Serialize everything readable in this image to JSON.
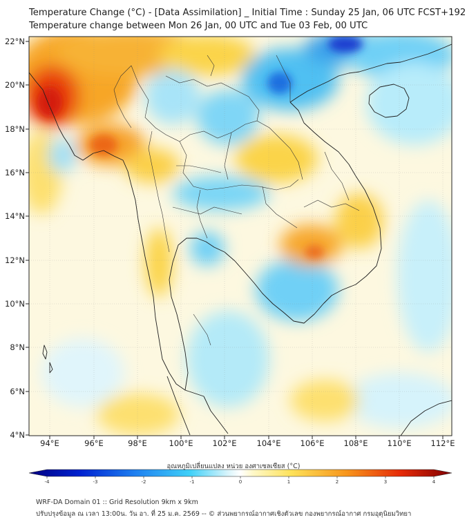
{
  "title_line1": "Temperature Change (°C) - [Data Assimilation] _ Initial Time : Sunday 25 Jan, 06 UTC FCST+192",
  "title_line2": "Temperature change between Mon 26 Jan, 00 UTC and Tue 03 Feb, 00 UTC",
  "lon_labels": [
    "94°E",
    "96°E",
    "98°E",
    "100°E",
    "102°E",
    "104°E",
    "106°E",
    "108°E",
    "110°E",
    "112°E"
  ],
  "lat_labels": [
    "22°N",
    "20°N",
    "18°N",
    "16°N",
    "14°N",
    "12°N",
    "10°N",
    "8°N",
    "6°N",
    "4°N"
  ],
  "colorbar": {
    "title": "อุณหภูมิเปลี่ยนแปลง หน่วย องศาเซลเซียส (°C)",
    "ticks": [
      "-4",
      "-3",
      "-2",
      "-1",
      "0",
      "1",
      "2",
      "3",
      "4"
    ],
    "range": [
      -4,
      4
    ]
  },
  "footer_line1": "WRF-DA Domain 01 :: Grid Resolution 9km x 9km",
  "footer_line2": "ปรับปรุงข้อมูล ณ เวลา 13:00น. วัน อา. ที่ 25 ม.ค. 2569 -- © ส่วนพยากรณ์อากาศเชิงตัวเลข กองพยากรณ์อากาศ กรมอุตุนิยมวิทยา",
  "colors": {
    "neutral": "#ffffff",
    "warm_max": "#d40000",
    "cold_max": "#000080"
  }
}
